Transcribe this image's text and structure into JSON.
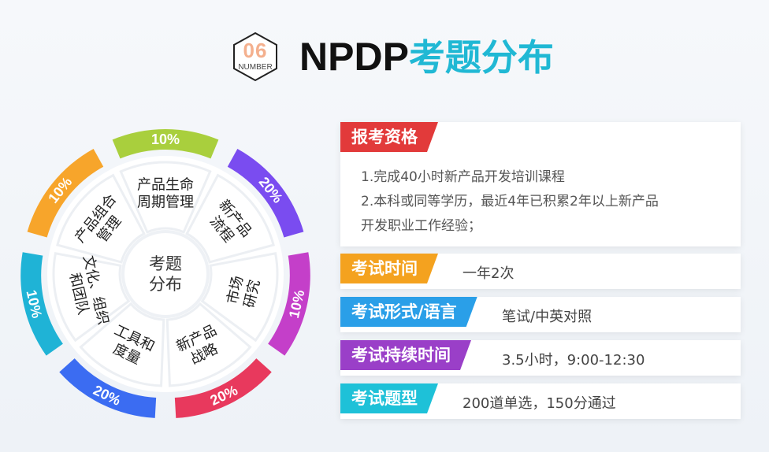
{
  "header": {
    "badge_number": "06",
    "badge_label": "NUMBER",
    "title_en": "NPDP",
    "title_cn": "考题分布"
  },
  "wheel": {
    "center_label": [
      "考题",
      "分布"
    ],
    "segments": [
      {
        "pct": "10%",
        "label": [
          "产品生命",
          "周期管理"
        ],
        "color": "#a9cf3d"
      },
      {
        "pct": "20%",
        "label": [
          "新产品",
          "流程"
        ],
        "color": "#7a4cf0"
      },
      {
        "pct": "10%",
        "label": [
          "市场",
          "研究"
        ],
        "color": "#c43fc9"
      },
      {
        "pct": "20%",
        "label": [
          "新产品",
          "战略"
        ],
        "color": "#e8395d"
      },
      {
        "pct": "20%",
        "label": [
          "工具和",
          "度量"
        ],
        "color": "#3b6cf2"
      },
      {
        "pct": "10%",
        "label": [
          "文化、组织",
          "和团队"
        ],
        "color": "#1fb3d6"
      },
      {
        "pct": "10%",
        "label": [
          "产品组合",
          "管理"
        ],
        "color": "#f7a52b"
      }
    ]
  },
  "cards": {
    "requirements": {
      "tag": "报考资格",
      "tag_color": "#e23a3a",
      "lines": [
        "1.完成40小时新产品开发培训课程",
        "2.本科或同等学历，最近4年已积累2年以上新产品",
        "开发职业工作经验；"
      ]
    },
    "exam_time": {
      "tag": "考试时间",
      "tag_color": "#f4a21f",
      "value": "一年2次"
    },
    "exam_format": {
      "tag": "考试形式/语言",
      "tag_color": "#2a9fe8",
      "value": "笔试/中英对照"
    },
    "exam_duration": {
      "tag": "考试持续时间",
      "tag_color": "#9a3fc8",
      "value": "3.5小时，9:00-12:30"
    },
    "exam_type": {
      "tag": "考试题型",
      "tag_color": "#1ec1d8",
      "value": "200道单选，150分通过"
    }
  }
}
